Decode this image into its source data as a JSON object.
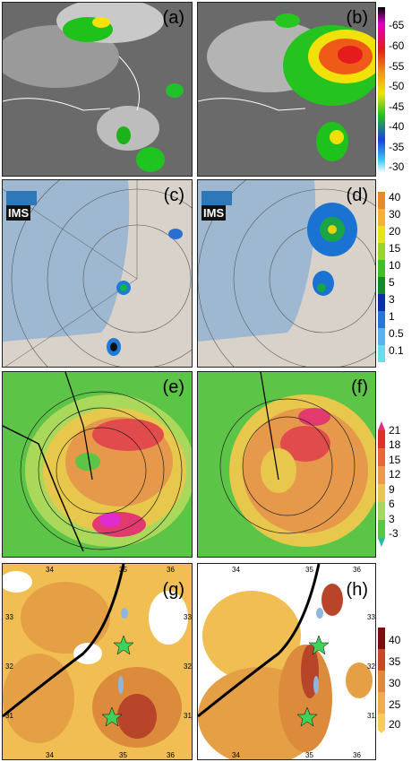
{
  "panels": [
    {
      "id": "a",
      "label": "(a)"
    },
    {
      "id": "b",
      "label": "(b)"
    },
    {
      "id": "c",
      "label": "(c)"
    },
    {
      "id": "d",
      "label": "(d)"
    },
    {
      "id": "e",
      "label": "(e)"
    },
    {
      "id": "f",
      "label": "(f)"
    },
    {
      "id": "g",
      "label": "(g)"
    },
    {
      "id": "h",
      "label": "(h)"
    }
  ],
  "ims_logo_text": "IMS",
  "colorbar_row1": {
    "ticks": [
      "-65",
      "-60",
      "-55",
      "-50",
      "-45",
      "-40",
      "-35",
      "-30"
    ]
  },
  "colorbar_row2": {
    "ticks": [
      "40",
      "30",
      "20",
      "15",
      "10",
      "5",
      "3",
      "1",
      "0.5",
      "0.1"
    ]
  },
  "colorbar_row3": {
    "ticks": [
      "21",
      "18",
      "15",
      "12",
      "9",
      "6",
      "3",
      "-3"
    ]
  },
  "colorbar_row4": {
    "ticks": [
      "40",
      "35",
      "30",
      "25",
      "20"
    ]
  },
  "grid_labels_g": {
    "top": [
      "34",
      "35",
      "36"
    ],
    "bottom": [
      "34",
      "35",
      "36"
    ],
    "left": [
      "33",
      "32",
      "31"
    ],
    "right": [
      "33",
      "32",
      "31"
    ]
  },
  "grid_labels_h": {
    "top": [
      "34",
      "35",
      "36"
    ],
    "bottom": [
      "34",
      "35",
      "36"
    ],
    "right": [
      "33",
      "32",
      "31"
    ]
  },
  "colors": {
    "sat_bg": "#6e6e6e",
    "map_sea": "#9ab7d4",
    "map_land": "#d9d3cc",
    "cape_green": "#52c13f",
    "precip_orange": "#e8a24a"
  }
}
